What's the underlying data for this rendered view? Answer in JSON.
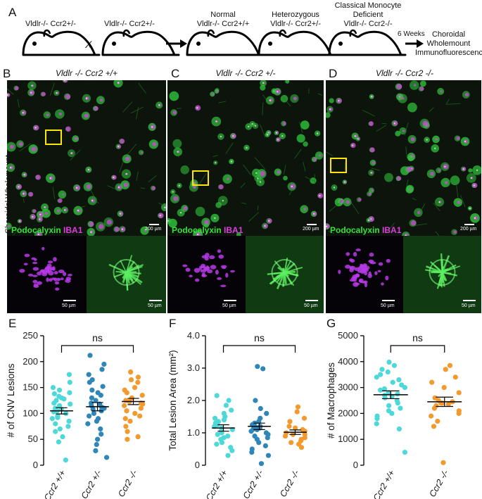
{
  "panel_letters": {
    "A": "A",
    "B": "B",
    "C": "C",
    "D": "D",
    "E": "E",
    "F": "F",
    "G": "G"
  },
  "schematic": {
    "mouse1_label": "Vldlr-/- Ccr2+/-",
    "cross_symbol": "X",
    "mouse2_label": "Vldlr-/- Ccr2+/-",
    "mouse3_title": "Normal",
    "mouse3_label": "Vldlr-/- Ccr2+/+",
    "mouse4_title": "Heterozygous",
    "mouse4_label": "Vldlr-/- Ccr2+/-",
    "mouse5_title1": "Classical Monocyte",
    "mouse5_title2": "Deficient",
    "mouse5_label": "Vldlr-/- Ccr2-/-",
    "weeks": "6 Weeks",
    "outcome1": "Choroidal",
    "outcome2": "Wholemount",
    "outcome3": "Immunofluorescence"
  },
  "micrographs": {
    "side_label": "Choroidal Wholemount",
    "panels": [
      {
        "letter": "B",
        "title": "Vldlr -/- Ccr2 +/+",
        "legend_green": "Podocalyxin",
        "legend_magenta": "IBA1",
        "scale_main": "200 µm",
        "scale_inset": "50 µm"
      },
      {
        "letter": "C",
        "title": "Vldlr -/- Ccr2 +/-",
        "legend_green": "Podocalyxin",
        "legend_magenta": "IBA1",
        "scale_main": "200 µm",
        "scale_inset": "50 µm"
      },
      {
        "letter": "D",
        "title": "Vldlr -/- Ccr2 -/-",
        "legend_green": "Podocalyxin",
        "legend_magenta": "IBA1",
        "scale_main": "200 µm",
        "scale_inset": "50 µm"
      }
    ]
  },
  "colors": {
    "cyan": "#4fd8d8",
    "blue": "#2f86b8",
    "orange": "#f29a2e",
    "green": "#35e33a",
    "magenta": "#e03ae0"
  },
  "chart_data": [
    {
      "panel": "E",
      "type": "scatter",
      "ylabel": "# of CNV Lesions",
      "ylim": [
        0,
        250
      ],
      "yticks": [
        "0",
        "50",
        "100",
        "150",
        "200",
        "250"
      ],
      "categories": [
        "Ccr2 +/+",
        "Ccr2 +/-",
        "Ccr2 -/-"
      ],
      "significance": "ns",
      "series": [
        {
          "category": "Ccr2 +/+",
          "mean": 105,
          "sem": 6,
          "values": [
            175,
            160,
            150,
            145,
            140,
            138,
            133,
            130,
            128,
            125,
            120,
            118,
            115,
            110,
            108,
            105,
            103,
            100,
            95,
            92,
            90,
            85,
            80,
            75,
            70,
            65,
            55,
            45,
            10
          ]
        },
        {
          "category": "Ccr2 +/-",
          "mean": 113,
          "sem": 8,
          "values": [
            212,
            195,
            185,
            175,
            165,
            160,
            152,
            145,
            140,
            135,
            130,
            125,
            120,
            118,
            115,
            112,
            110,
            108,
            105,
            100,
            95,
            90,
            85,
            80,
            70,
            60,
            50,
            40,
            28,
            15
          ]
        },
        {
          "category": "Ccr2 -/-",
          "mean": 123,
          "sem": 6,
          "values": [
            180,
            170,
            165,
            160,
            150,
            145,
            140,
            135,
            130,
            125,
            123,
            120,
            118,
            115,
            110,
            105,
            100,
            95,
            90,
            85,
            75,
            65,
            55,
            50
          ]
        }
      ]
    },
    {
      "panel": "F",
      "type": "scatter",
      "ylabel": "Total Lesion Area (mm²)",
      "ylim": [
        0,
        4.0
      ],
      "yticks": [
        "0",
        "1.0",
        "2.0",
        "3.0",
        "4.0"
      ],
      "categories": [
        "Ccr2 +/+",
        "Ccr2 +/-",
        "Ccr2 -/-"
      ],
      "significance": "ns",
      "series": [
        {
          "category": "Ccr2 +/+",
          "mean": 1.15,
          "sem": 0.1,
          "values": [
            2.15,
            2.0,
            1.85,
            1.7,
            1.6,
            1.5,
            1.45,
            1.4,
            1.35,
            1.3,
            1.25,
            1.2,
            1.15,
            1.1,
            1.05,
            1.0,
            0.95,
            0.9,
            0.85,
            0.8,
            0.7,
            0.65,
            0.55,
            0.45,
            0.3
          ]
        },
        {
          "category": "Ccr2 +/-",
          "mean": 1.2,
          "sem": 0.1,
          "values": [
            3.05,
            2.98,
            2.0,
            1.75,
            1.6,
            1.45,
            1.35,
            1.3,
            1.25,
            1.2,
            1.18,
            1.15,
            1.12,
            1.1,
            1.05,
            1.0,
            0.95,
            0.9,
            0.85,
            0.8,
            0.7,
            0.6,
            0.5,
            0.4,
            0.3,
            0.05
          ]
        },
        {
          "category": "Ccr2 -/-",
          "mean": 1.02,
          "sem": 0.07,
          "values": [
            1.8,
            1.65,
            1.45,
            1.35,
            1.2,
            1.15,
            1.1,
            1.05,
            1.0,
            0.95,
            0.95,
            0.9,
            0.85,
            0.8,
            0.75,
            0.7,
            0.65,
            0.55
          ]
        }
      ]
    },
    {
      "panel": "G",
      "type": "scatter",
      "ylabel": "# of Macrophages",
      "ylim": [
        0,
        5000
      ],
      "yticks": [
        "0",
        "1000",
        "2000",
        "3000",
        "4000",
        "5000"
      ],
      "categories": [
        "Ccr2 +/+",
        "Ccr2 -/-"
      ],
      "significance": "ns",
      "series": [
        {
          "category": "Ccr2 +/+",
          "mean": 2720,
          "sem": 150,
          "values": [
            3980,
            3850,
            3700,
            3600,
            3500,
            3400,
            3300,
            3200,
            3100,
            3000,
            2950,
            2900,
            2800,
            2750,
            2700,
            2650,
            2600,
            2500,
            2400,
            2300,
            2200,
            2100,
            2000,
            1900,
            1800,
            1600,
            1400,
            500
          ]
        },
        {
          "category": "Ccr2 -/-",
          "mean": 2450,
          "sem": 180,
          "values": [
            3850,
            3700,
            3400,
            3200,
            3000,
            2800,
            2600,
            2500,
            2450,
            2400,
            2400,
            2350,
            2300,
            2200,
            2100,
            2000,
            1900,
            1700,
            1500,
            100
          ]
        }
      ]
    }
  ]
}
